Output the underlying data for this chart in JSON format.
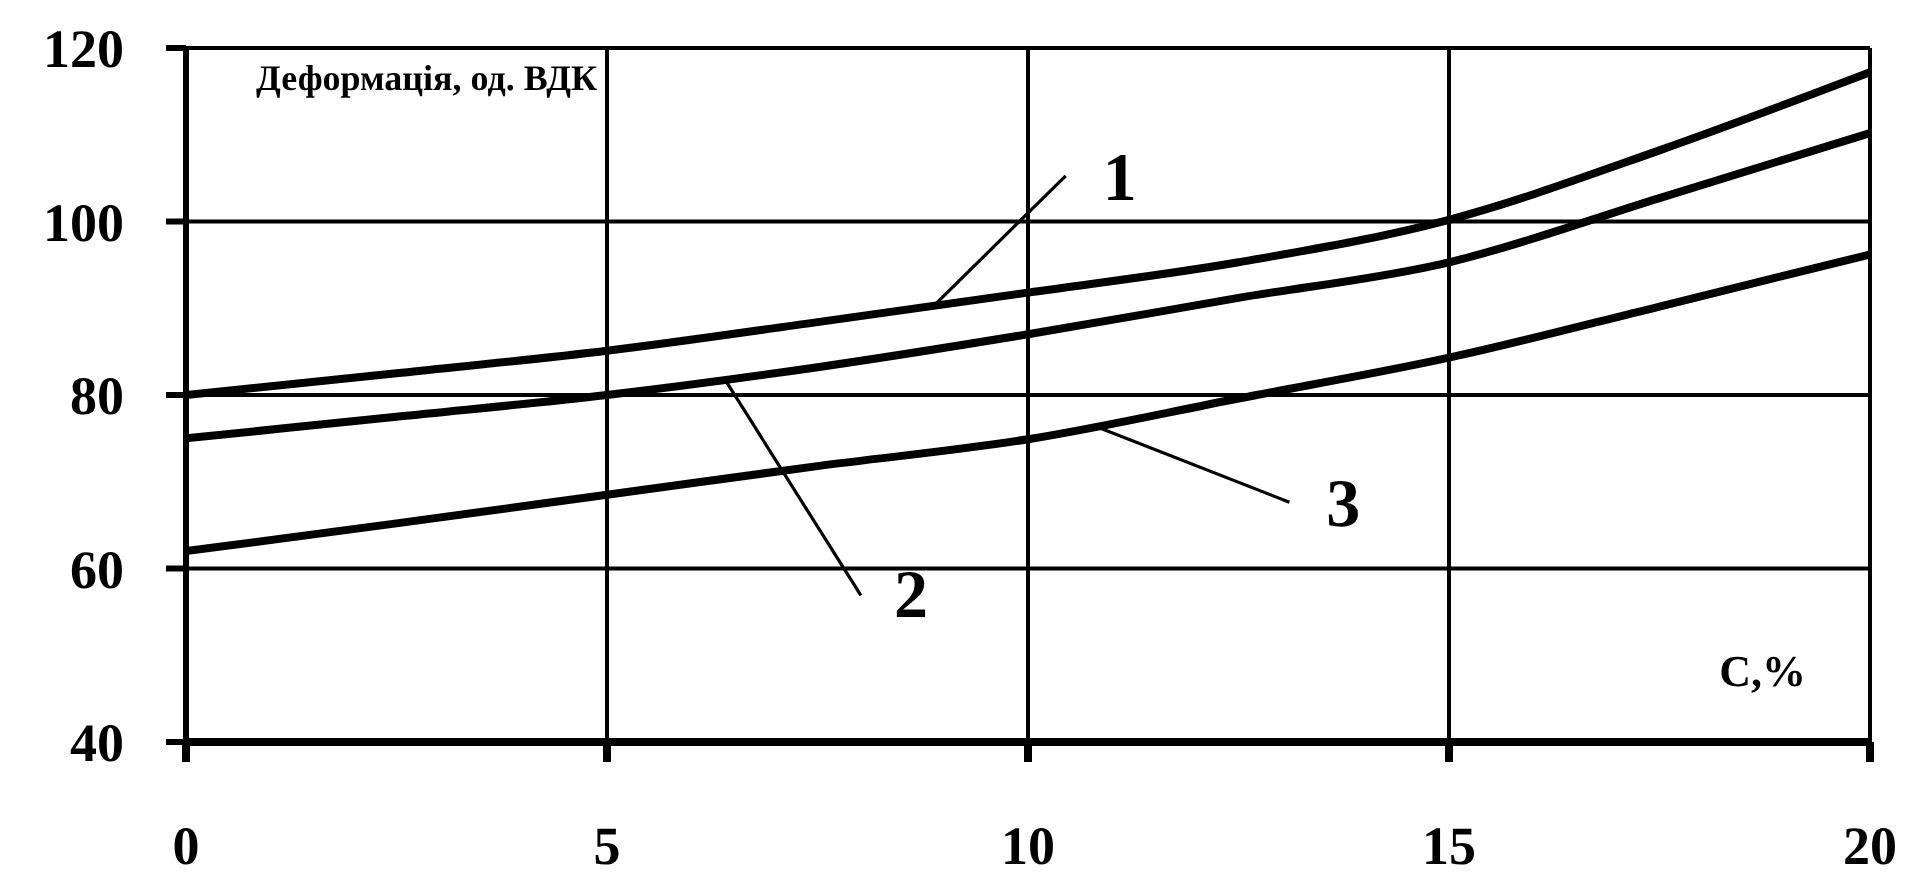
{
  "chart_data": {
    "type": "line",
    "xlabel": "С,%",
    "ylabel": "Деформація, од. ВДК",
    "x": [
      0,
      2.5,
      5,
      7.5,
      10,
      12.5,
      15,
      17.5,
      20
    ],
    "series": [
      {
        "name": "1",
        "color": "#000000",
        "values": [
          80,
          82.5,
          85.1,
          88.4,
          91.8,
          95.3,
          100.2,
          108.2,
          117.2
        ]
      },
      {
        "name": "2",
        "color": "#000000",
        "values": [
          75,
          77.5,
          80,
          83.2,
          87,
          91.2,
          95.3,
          102.7,
          110.2
        ]
      },
      {
        "name": "3",
        "color": "#000000",
        "values": [
          62,
          65.2,
          68.5,
          71.8,
          74.9,
          79.6,
          84.3,
          90.2,
          96.2
        ]
      }
    ],
    "xlim": [
      0,
      20
    ],
    "ylim": [
      40,
      120
    ],
    "xticks": [
      0,
      5,
      10,
      15,
      20
    ],
    "yticks": [
      40,
      60,
      80,
      100,
      120
    ],
    "grid": true,
    "marker": "none"
  }
}
